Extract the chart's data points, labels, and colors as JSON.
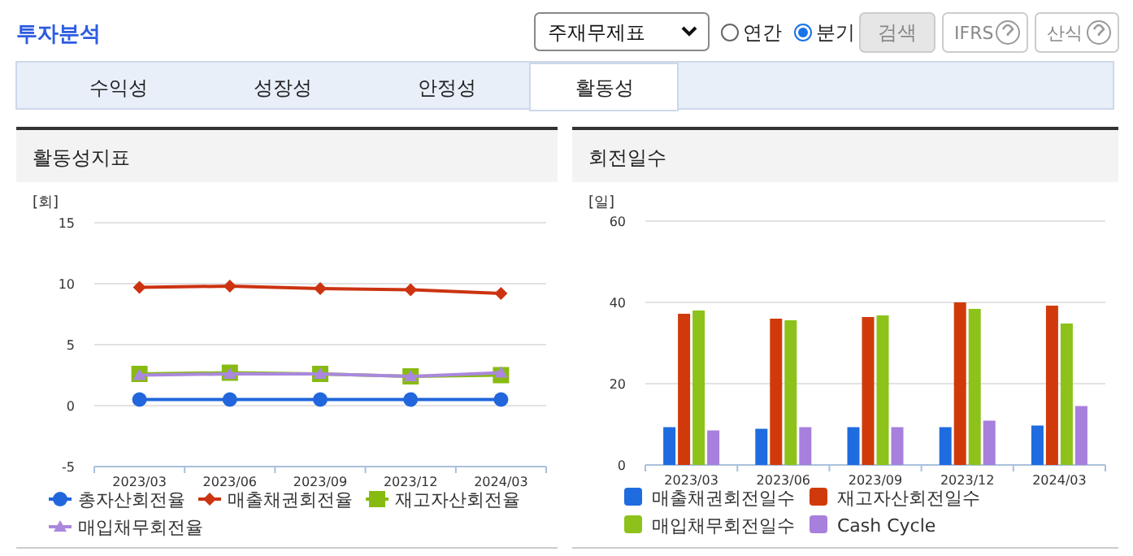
{
  "chart_data": [
    {
      "type": "line",
      "title": "활동성지표",
      "ylabel": "[회]",
      "categories": [
        "2023/03",
        "2023/06",
        "2023/09",
        "2023/12",
        "2024/03"
      ],
      "ylim": [
        -5,
        15
      ],
      "yticks": [
        -5,
        0,
        5,
        10,
        15
      ],
      "grid": "y",
      "legend": "bottom",
      "annotations": [
        "투자분석",
        "주재무제표",
        "연간",
        "분기",
        "검색",
        "IFRS",
        "산식",
        "수익성",
        "성장성",
        "안정성",
        "활동성"
      ],
      "series": [
        {
          "name": "총자산회전율",
          "color": "#2266dd",
          "marker": "circle",
          "values": [
            0.5,
            0.5,
            0.5,
            0.5,
            0.5
          ]
        },
        {
          "name": "매출채권회전율",
          "color": "#cc3311",
          "marker": "diamond",
          "values": [
            9.7,
            9.8,
            9.6,
            9.5,
            9.2
          ]
        },
        {
          "name": "재고자산회전율",
          "color": "#88bb11",
          "marker": "square",
          "values": [
            2.6,
            2.7,
            2.6,
            2.4,
            2.5
          ]
        },
        {
          "name": "매입채무회전율",
          "color": "#aa88dd",
          "marker": "triangle",
          "values": [
            2.5,
            2.6,
            2.6,
            2.4,
            2.7
          ]
        }
      ]
    },
    {
      "type": "bar",
      "title": "회전일수",
      "ylabel": "[일]",
      "categories": [
        "2023/03",
        "2023/06",
        "2023/09",
        "2023/12",
        "2024/03"
      ],
      "ylim": [
        0,
        60
      ],
      "yticks": [
        0,
        20,
        40,
        60
      ],
      "grid": "y",
      "legend": "bottom",
      "series": [
        {
          "name": "매출채권회전일수",
          "color": "#1f6be0",
          "values": [
            9.3,
            8.9,
            9.3,
            9.3,
            9.7
          ]
        },
        {
          "name": "재고자산회전일수",
          "color": "#d03a0a",
          "values": [
            37.2,
            36.0,
            36.4,
            40.0,
            39.2
          ]
        },
        {
          "name": "매입채무회전일수",
          "color": "#8cc21a",
          "values": [
            38.0,
            35.6,
            36.8,
            38.4,
            34.8
          ]
        },
        {
          "name": "Cash Cycle",
          "color": "#a77fdc",
          "values": [
            8.5,
            9.3,
            9.3,
            10.9,
            14.5
          ]
        }
      ]
    }
  ]
}
